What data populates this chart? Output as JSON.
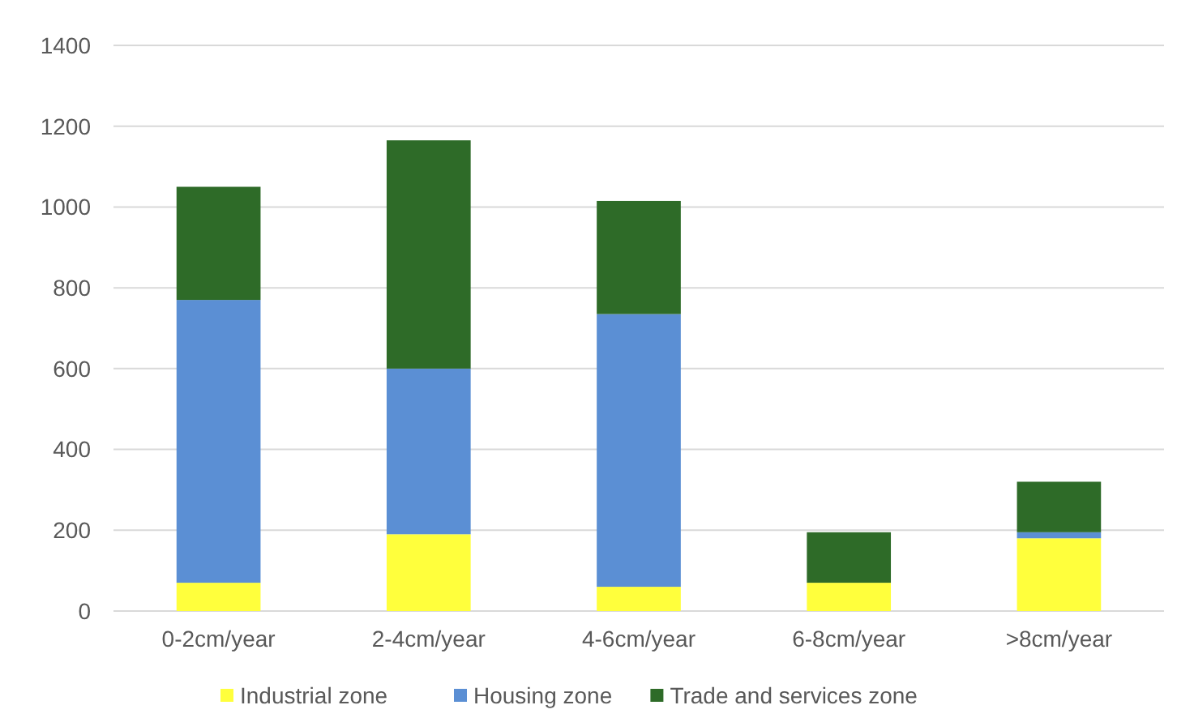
{
  "chart_data": {
    "type": "bar",
    "stacked": true,
    "categories": [
      "0-2cm/year",
      "2-4cm/year",
      "4-6cm/year",
      "6-8cm/year",
      ">8cm/year"
    ],
    "series": [
      {
        "name": "Industrial zone",
        "color": "#ffff3c",
        "values": [
          70,
          190,
          60,
          70,
          180
        ]
      },
      {
        "name": "Housing zone",
        "color": "#5b8fd4",
        "values": [
          700,
          410,
          675,
          0,
          15
        ]
      },
      {
        "name": "Trade and services zone",
        "color": "#2e6b28",
        "values": [
          280,
          565,
          280,
          125,
          125
        ]
      }
    ],
    "ylim": [
      0,
      1400
    ],
    "yticks": [
      0,
      200,
      400,
      600,
      800,
      1000,
      1200,
      1400
    ],
    "grid": "y",
    "legend": "bottom"
  }
}
